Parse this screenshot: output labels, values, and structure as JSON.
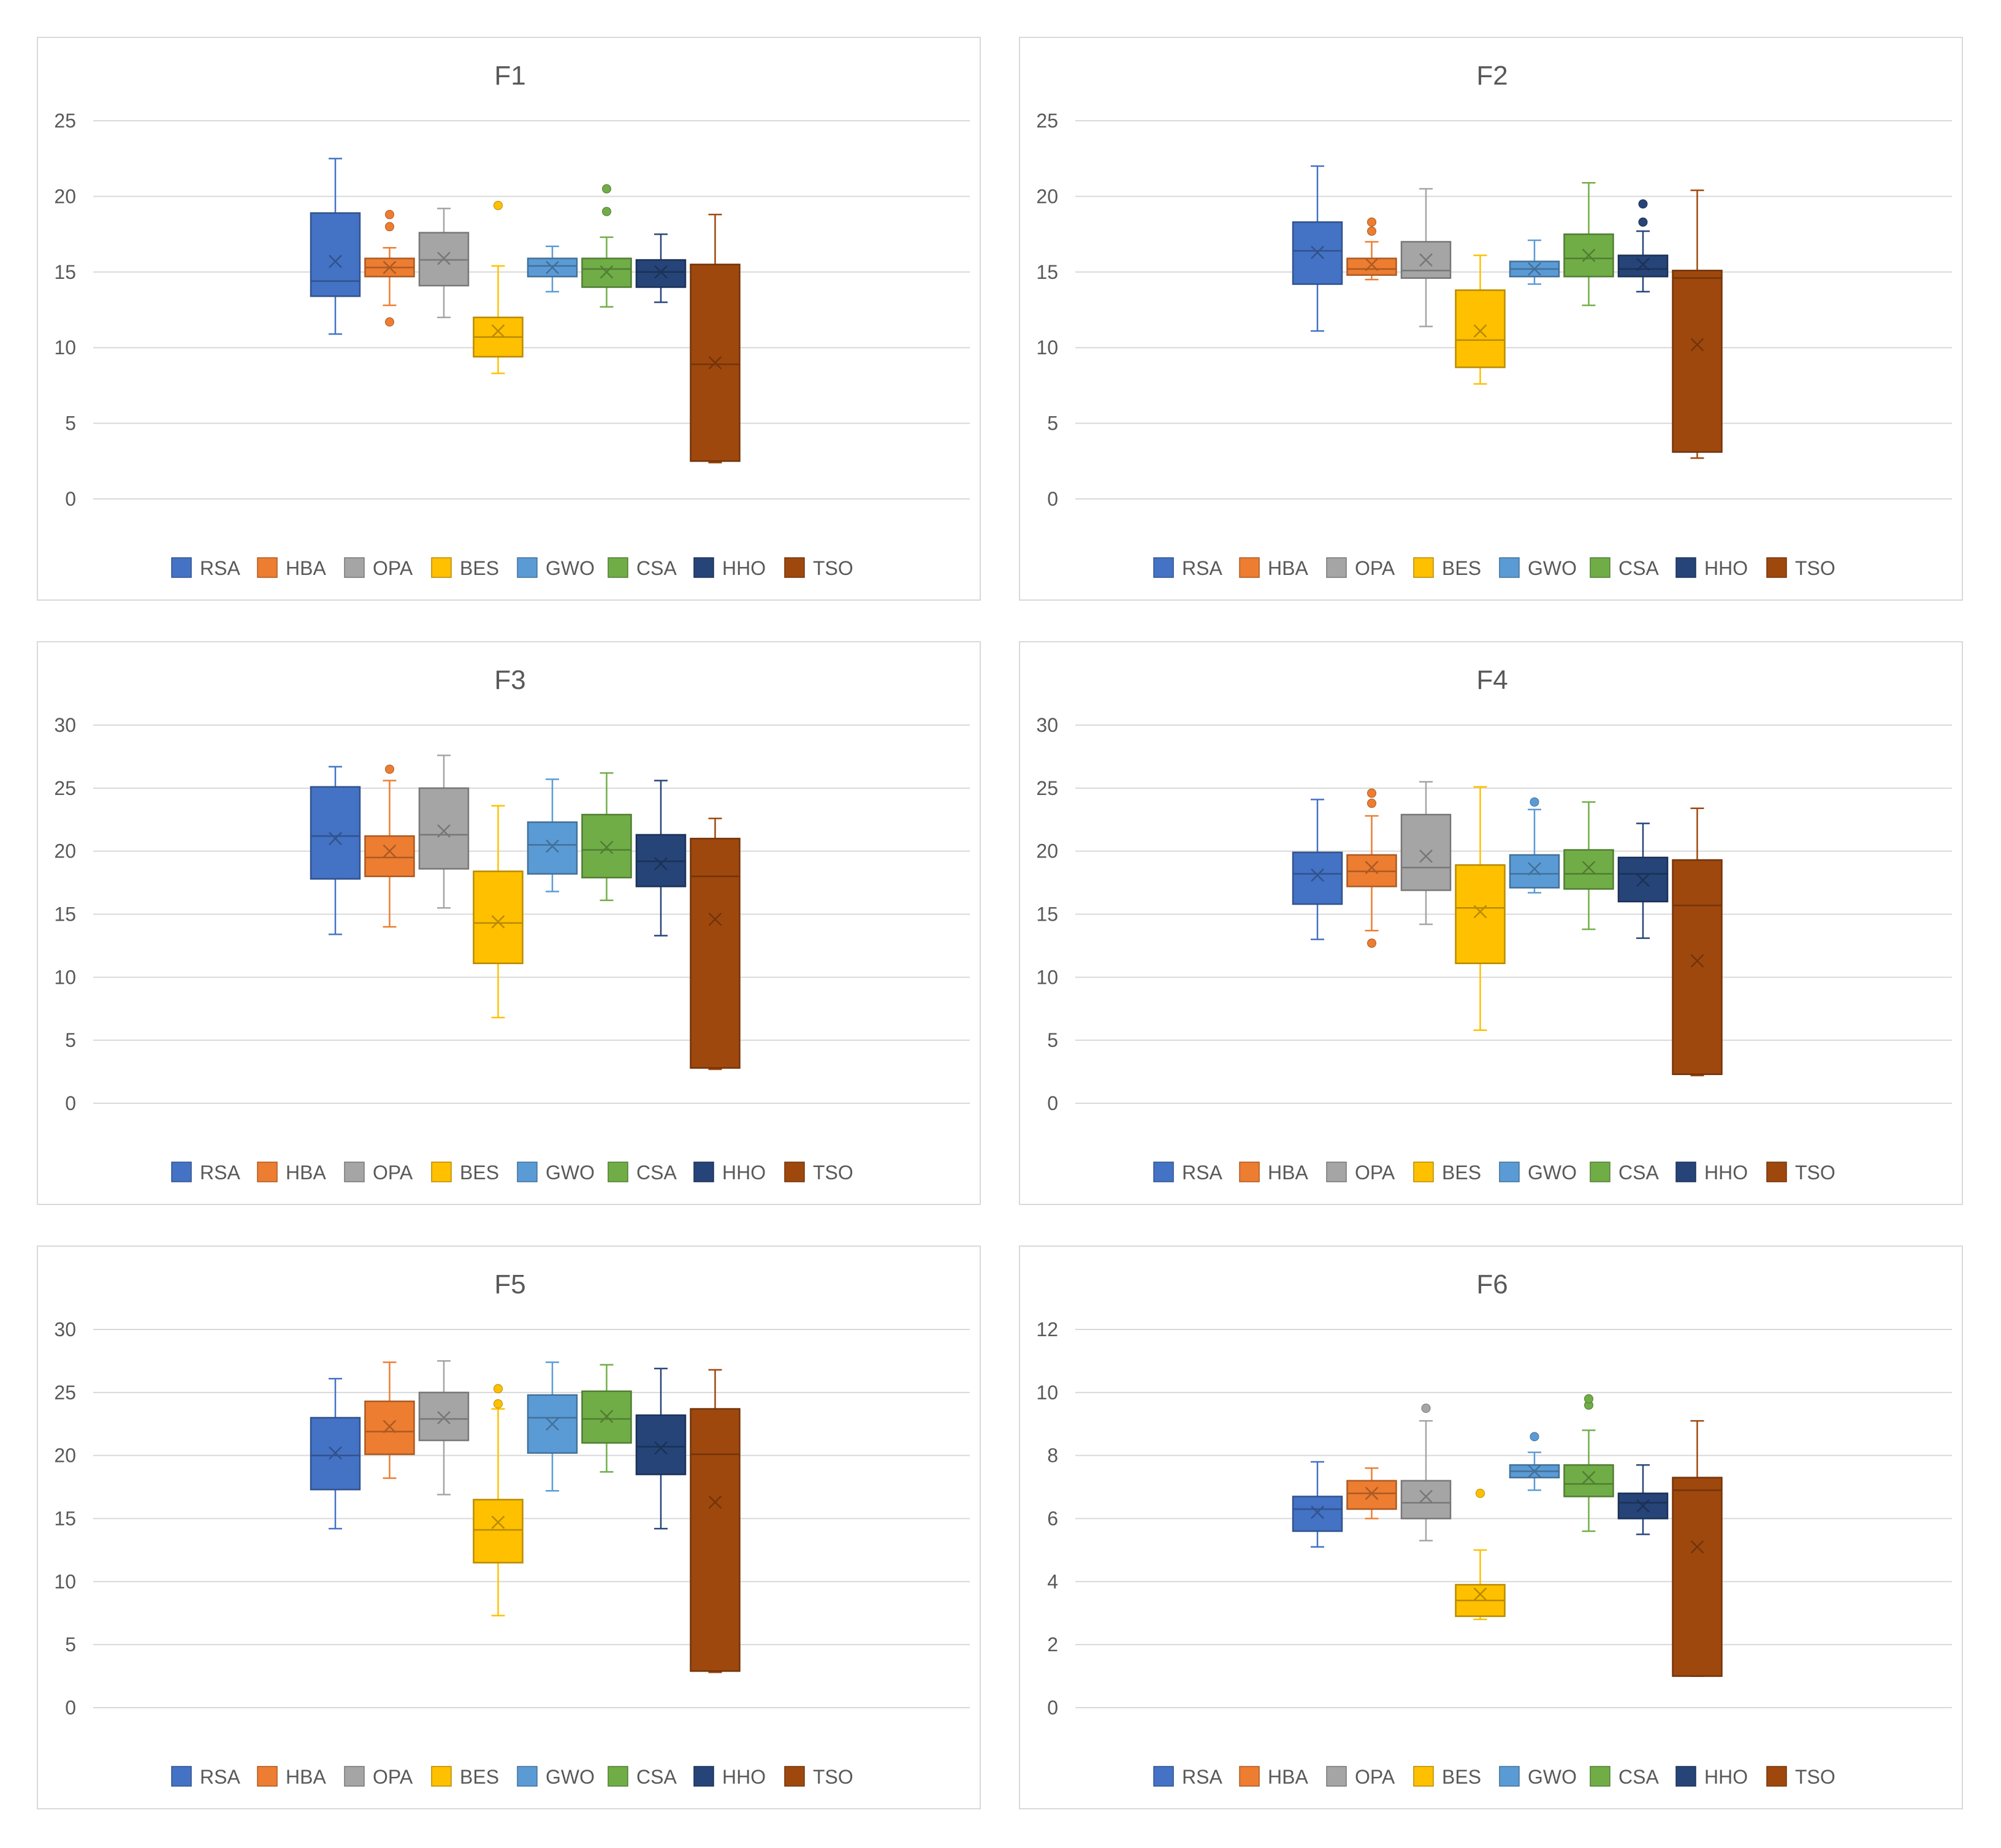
{
  "legend_labels": [
    "RSA",
    "HBA",
    "OPA",
    "BES",
    "GWO",
    "CSA",
    "HHO",
    "TSO"
  ],
  "colors": {
    "RSA": "#4472c4",
    "HBA": "#ed7d31",
    "OPA": "#a5a5a5",
    "BES": "#ffc000",
    "GWO": "#5b9bd5",
    "CSA": "#70ad47",
    "HHO": "#264478",
    "TSO": "#9e480e"
  },
  "chart_data": [
    {
      "type": "boxplot",
      "title": "F1",
      "ylim": [
        0,
        25
      ],
      "ticks": [
        0,
        5,
        10,
        15,
        20,
        25
      ],
      "grid": true,
      "legend_position": "bottom",
      "series": [
        {
          "name": "RSA",
          "min": 10.9,
          "q1": 13.4,
          "median": 14.4,
          "q3": 18.9,
          "max": 22.5,
          "mean": 15.7,
          "outliers": []
        },
        {
          "name": "HBA",
          "min": 12.8,
          "q1": 14.7,
          "median": 15.3,
          "q3": 15.9,
          "max": 16.6,
          "mean": 15.3,
          "outliers": [
            11.7,
            18.0,
            18.8
          ]
        },
        {
          "name": "OPA",
          "min": 12.0,
          "q1": 14.1,
          "median": 15.8,
          "q3": 17.6,
          "max": 19.2,
          "mean": 15.9,
          "outliers": []
        },
        {
          "name": "BES",
          "min": 8.3,
          "q1": 9.4,
          "median": 10.7,
          "q3": 12.0,
          "max": 15.4,
          "mean": 11.1,
          "outliers": [
            19.4
          ]
        },
        {
          "name": "GWO",
          "min": 13.7,
          "q1": 14.7,
          "median": 15.4,
          "q3": 15.9,
          "max": 16.7,
          "mean": 15.3,
          "outliers": []
        },
        {
          "name": "CSA",
          "min": 12.7,
          "q1": 14.0,
          "median": 15.2,
          "q3": 15.9,
          "max": 17.3,
          "mean": 15.0,
          "outliers": [
            19.0,
            20.5
          ]
        },
        {
          "name": "HHO",
          "min": 13.0,
          "q1": 14.0,
          "median": 15.0,
          "q3": 15.8,
          "max": 17.5,
          "mean": 15.0,
          "outliers": []
        },
        {
          "name": "TSO",
          "min": 2.4,
          "q1": 2.5,
          "median": 8.9,
          "q3": 15.5,
          "max": 18.8,
          "mean": 9.0,
          "outliers": []
        }
      ]
    },
    {
      "type": "boxplot",
      "title": "F2",
      "ylim": [
        0,
        25
      ],
      "ticks": [
        0,
        5,
        10,
        15,
        20,
        25
      ],
      "grid": true,
      "legend_position": "bottom",
      "series": [
        {
          "name": "RSA",
          "min": 11.1,
          "q1": 14.2,
          "median": 16.4,
          "q3": 18.3,
          "max": 22.0,
          "mean": 16.3,
          "outliers": []
        },
        {
          "name": "HBA",
          "min": 14.5,
          "q1": 14.8,
          "median": 15.2,
          "q3": 15.9,
          "max": 17.0,
          "mean": 15.5,
          "outliers": [
            17.7,
            18.3
          ]
        },
        {
          "name": "OPA",
          "min": 11.4,
          "q1": 14.6,
          "median": 15.1,
          "q3": 17.0,
          "max": 20.5,
          "mean": 15.8,
          "outliers": []
        },
        {
          "name": "BES",
          "min": 7.6,
          "q1": 8.7,
          "median": 10.5,
          "q3": 13.8,
          "max": 16.1,
          "mean": 11.1,
          "outliers": []
        },
        {
          "name": "GWO",
          "min": 14.2,
          "q1": 14.7,
          "median": 15.2,
          "q3": 15.7,
          "max": 17.1,
          "mean": 15.2,
          "outliers": []
        },
        {
          "name": "CSA",
          "min": 12.8,
          "q1": 14.7,
          "median": 15.9,
          "q3": 17.5,
          "max": 20.9,
          "mean": 16.1,
          "outliers": []
        },
        {
          "name": "HHO",
          "min": 13.7,
          "q1": 14.7,
          "median": 15.2,
          "q3": 16.1,
          "max": 17.7,
          "mean": 15.5,
          "outliers": [
            18.3,
            19.5
          ]
        },
        {
          "name": "TSO",
          "min": 2.7,
          "q1": 3.1,
          "median": 14.6,
          "q3": 15.1,
          "max": 20.4,
          "mean": 10.2,
          "outliers": []
        }
      ]
    },
    {
      "type": "boxplot",
      "title": "F3",
      "ylim": [
        0,
        30
      ],
      "ticks": [
        0,
        5,
        10,
        15,
        20,
        25,
        30
      ],
      "grid": true,
      "legend_position": "bottom",
      "series": [
        {
          "name": "RSA",
          "min": 13.4,
          "q1": 17.8,
          "median": 21.2,
          "q3": 25.1,
          "max": 26.7,
          "mean": 21.0,
          "outliers": []
        },
        {
          "name": "HBA",
          "min": 14.0,
          "q1": 18.0,
          "median": 19.5,
          "q3": 21.2,
          "max": 25.6,
          "mean": 20.0,
          "outliers": [
            26.5
          ]
        },
        {
          "name": "OPA",
          "min": 15.5,
          "q1": 18.6,
          "median": 21.3,
          "q3": 25.0,
          "max": 27.6,
          "mean": 21.6,
          "outliers": []
        },
        {
          "name": "BES",
          "min": 6.8,
          "q1": 11.1,
          "median": 14.3,
          "q3": 18.4,
          "max": 23.6,
          "mean": 14.4,
          "outliers": []
        },
        {
          "name": "GWO",
          "min": 16.8,
          "q1": 18.2,
          "median": 20.5,
          "q3": 22.3,
          "max": 25.7,
          "mean": 20.4,
          "outliers": []
        },
        {
          "name": "CSA",
          "min": 16.1,
          "q1": 17.9,
          "median": 20.1,
          "q3": 22.9,
          "max": 26.2,
          "mean": 20.3,
          "outliers": []
        },
        {
          "name": "HHO",
          "min": 13.3,
          "q1": 17.2,
          "median": 19.2,
          "q3": 21.3,
          "max": 25.6,
          "mean": 19.0,
          "outliers": []
        },
        {
          "name": "TSO",
          "min": 2.7,
          "q1": 2.8,
          "median": 18.0,
          "q3": 21.0,
          "max": 22.6,
          "mean": 14.6,
          "outliers": []
        }
      ]
    },
    {
      "type": "boxplot",
      "title": "F4",
      "ylim": [
        0,
        30
      ],
      "ticks": [
        0,
        5,
        10,
        15,
        20,
        25,
        30
      ],
      "grid": true,
      "legend_position": "bottom",
      "series": [
        {
          "name": "RSA",
          "min": 13.0,
          "q1": 15.8,
          "median": 18.2,
          "q3": 19.9,
          "max": 24.1,
          "mean": 18.1,
          "outliers": []
        },
        {
          "name": "HBA",
          "min": 13.7,
          "q1": 17.2,
          "median": 18.4,
          "q3": 19.7,
          "max": 22.8,
          "mean": 18.7,
          "outliers": [
            12.7,
            23.8,
            24.6
          ]
        },
        {
          "name": "OPA",
          "min": 14.2,
          "q1": 16.9,
          "median": 18.7,
          "q3": 22.9,
          "max": 25.5,
          "mean": 19.6,
          "outliers": []
        },
        {
          "name": "BES",
          "min": 5.8,
          "q1": 11.1,
          "median": 15.5,
          "q3": 18.9,
          "max": 25.1,
          "mean": 15.2,
          "outliers": []
        },
        {
          "name": "GWO",
          "min": 16.7,
          "q1": 17.1,
          "median": 18.2,
          "q3": 19.7,
          "max": 23.3,
          "mean": 18.6,
          "outliers": [
            23.9
          ]
        },
        {
          "name": "CSA",
          "min": 13.8,
          "q1": 17.0,
          "median": 18.2,
          "q3": 20.1,
          "max": 23.9,
          "mean": 18.7,
          "outliers": []
        },
        {
          "name": "HHO",
          "min": 13.1,
          "q1": 16.0,
          "median": 18.2,
          "q3": 19.5,
          "max": 22.2,
          "mean": 17.7,
          "outliers": []
        },
        {
          "name": "TSO",
          "min": 2.2,
          "q1": 2.3,
          "median": 15.7,
          "q3": 19.3,
          "max": 23.4,
          "mean": 11.3,
          "outliers": []
        }
      ]
    },
    {
      "type": "boxplot",
      "title": "F5",
      "ylim": [
        0,
        30
      ],
      "ticks": [
        0,
        5,
        10,
        15,
        20,
        25,
        30
      ],
      "grid": true,
      "legend_position": "bottom",
      "series": [
        {
          "name": "RSA",
          "min": 14.2,
          "q1": 17.3,
          "median": 20.0,
          "q3": 23.0,
          "max": 26.1,
          "mean": 20.2,
          "outliers": []
        },
        {
          "name": "HBA",
          "min": 18.2,
          "q1": 20.1,
          "median": 21.9,
          "q3": 24.3,
          "max": 27.4,
          "mean": 22.3,
          "outliers": []
        },
        {
          "name": "OPA",
          "min": 16.9,
          "q1": 21.2,
          "median": 22.9,
          "q3": 25.0,
          "max": 27.5,
          "mean": 23.0,
          "outliers": []
        },
        {
          "name": "BES",
          "min": 7.3,
          "q1": 11.5,
          "median": 14.1,
          "q3": 16.5,
          "max": 23.7,
          "mean": 14.7,
          "outliers": [
            24.1,
            25.3
          ]
        },
        {
          "name": "GWO",
          "min": 17.2,
          "q1": 20.2,
          "median": 23.0,
          "q3": 24.8,
          "max": 27.4,
          "mean": 22.5,
          "outliers": []
        },
        {
          "name": "CSA",
          "min": 18.7,
          "q1": 21.0,
          "median": 22.9,
          "q3": 25.1,
          "max": 27.2,
          "mean": 23.1,
          "outliers": []
        },
        {
          "name": "HHO",
          "min": 14.2,
          "q1": 18.5,
          "median": 20.7,
          "q3": 23.2,
          "max": 26.9,
          "mean": 20.6,
          "outliers": []
        },
        {
          "name": "TSO",
          "min": 2.8,
          "q1": 2.9,
          "median": 20.1,
          "q3": 23.7,
          "max": 26.8,
          "mean": 16.3,
          "outliers": []
        }
      ]
    },
    {
      "type": "boxplot",
      "title": "F6",
      "ylim": [
        0,
        12
      ],
      "ticks": [
        0,
        2,
        4,
        6,
        8,
        10,
        12
      ],
      "grid": true,
      "legend_position": "bottom",
      "series": [
        {
          "name": "RSA",
          "min": 5.1,
          "q1": 5.6,
          "median": 6.3,
          "q3": 6.7,
          "max": 7.8,
          "mean": 6.2,
          "outliers": []
        },
        {
          "name": "HBA",
          "min": 6.0,
          "q1": 6.3,
          "median": 6.8,
          "q3": 7.2,
          "max": 7.6,
          "mean": 6.8,
          "outliers": []
        },
        {
          "name": "OPA",
          "min": 5.3,
          "q1": 6.0,
          "median": 6.5,
          "q3": 7.2,
          "max": 9.1,
          "mean": 6.7,
          "outliers": [
            9.5
          ]
        },
        {
          "name": "BES",
          "min": 2.8,
          "q1": 2.9,
          "median": 3.4,
          "q3": 3.9,
          "max": 5.0,
          "mean": 3.6,
          "outliers": [
            6.8
          ]
        },
        {
          "name": "GWO",
          "min": 6.9,
          "q1": 7.3,
          "median": 7.5,
          "q3": 7.7,
          "max": 8.1,
          "mean": 7.5,
          "outliers": [
            8.6
          ]
        },
        {
          "name": "CSA",
          "min": 5.6,
          "q1": 6.7,
          "median": 7.1,
          "q3": 7.7,
          "max": 8.8,
          "mean": 7.3,
          "outliers": [
            9.6,
            9.8
          ]
        },
        {
          "name": "HHO",
          "min": 5.5,
          "q1": 6.0,
          "median": 6.5,
          "q3": 6.8,
          "max": 7.7,
          "mean": 6.4,
          "outliers": []
        },
        {
          "name": "TSO",
          "min": 1.0,
          "q1": 1.0,
          "median": 6.9,
          "q3": 7.3,
          "max": 9.1,
          "mean": 5.1,
          "outliers": []
        }
      ]
    }
  ]
}
